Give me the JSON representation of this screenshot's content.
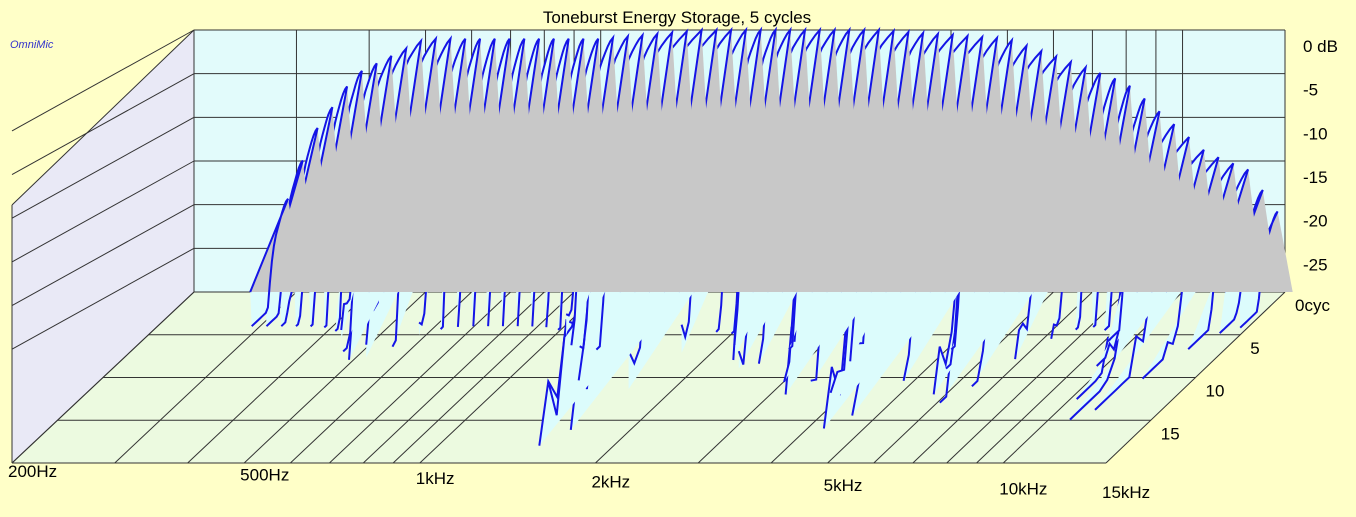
{
  "chart_data": {
    "type": "waterfall-3d",
    "title": "Toneburst Energy Storage, 5 cycles",
    "watermark": "OmniMic",
    "x_axis": {
      "scale": "log",
      "range_hz": [
        200,
        15000
      ],
      "ticks": [
        {
          "hz": 200,
          "label": "200Hz"
        },
        {
          "hz": 500,
          "label": "500Hz"
        },
        {
          "hz": 1000,
          "label": "1kHz"
        },
        {
          "hz": 2000,
          "label": "2kHz"
        },
        {
          "hz": 5000,
          "label": "5kHz"
        },
        {
          "hz": 10000,
          "label": "10kHz"
        },
        {
          "hz": 15000,
          "label": "15kHz"
        }
      ],
      "minor_ticks_hz": [
        300,
        400,
        600,
        700,
        800,
        900,
        3000,
        4000,
        6000,
        7000,
        8000,
        9000
      ]
    },
    "y_axis": {
      "unit": "dB",
      "range": [
        -30,
        0
      ],
      "ticks": [
        {
          "value": 0,
          "label": "0 dB"
        },
        {
          "value": -5,
          "label": "-5"
        },
        {
          "value": -10,
          "label": "-10"
        },
        {
          "value": -15,
          "label": "-15"
        },
        {
          "value": -20,
          "label": "-20"
        },
        {
          "value": -25,
          "label": "-25"
        }
      ]
    },
    "z_axis": {
      "unit": "cycles",
      "range": [
        0,
        20
      ],
      "ticks": [
        {
          "value": 0,
          "label": "0cyc"
        },
        {
          "value": 5,
          "label": "5"
        },
        {
          "value": 10,
          "label": "10"
        },
        {
          "value": 15,
          "label": "15"
        }
      ]
    },
    "grid": true,
    "colors": {
      "background": "#ffffc8",
      "back_wall": "#e2fbfb",
      "side_wall": "#e9e9f6",
      "floor": "#ecfae0",
      "grid": "#333333",
      "trace": "#1414e6",
      "fill_front": "#dcfcfc",
      "fill_back": "#c8c8c8"
    },
    "front_slice_envelope_db": [
      {
        "hz": 280,
        "db": -22
      },
      {
        "hz": 320,
        "db": -12
      },
      {
        "hz": 380,
        "db": -5
      },
      {
        "hz": 500,
        "db": -1
      },
      {
        "hz": 700,
        "db": -1
      },
      {
        "hz": 1000,
        "db": -1
      },
      {
        "hz": 1500,
        "db": 0
      },
      {
        "hz": 2000,
        "db": 0
      },
      {
        "hz": 3000,
        "db": 0
      },
      {
        "hz": 5000,
        "db": -1
      },
      {
        "hz": 8000,
        "db": -6
      },
      {
        "hz": 11000,
        "db": -14
      },
      {
        "hz": 13000,
        "db": -16
      },
      {
        "hz": 15000,
        "db": -22
      }
    ],
    "decay_regions": [
      {
        "hz": 500,
        "cycles": 4,
        "db": -12
      },
      {
        "hz": 1200,
        "cycles": 3,
        "db": -14
      },
      {
        "hz": 2400,
        "cycles": 5,
        "db": -7
      },
      {
        "hz": 3200,
        "cycles": 8,
        "db": -4
      },
      {
        "hz": 4300,
        "cycles": 12,
        "db": -6
      },
      {
        "hz": 6000,
        "cycles": 9,
        "db": -14
      },
      {
        "hz": 1500,
        "cycles": 14,
        "db": -24
      },
      {
        "hz": 11000,
        "cycles": 11,
        "db": -26
      }
    ]
  }
}
